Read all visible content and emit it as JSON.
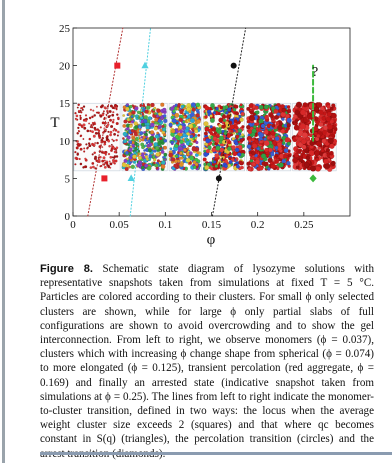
{
  "chart_data": {
    "type": "scatter",
    "xlabel": "φ",
    "ylabel": "T",
    "xlim": [
      0,
      0.3
    ],
    "ylim": [
      0,
      25
    ],
    "xticks": [
      "0",
      "0.05",
      "0.1",
      "0.15",
      "0.2",
      "0.25"
    ],
    "xtick_values": [
      0,
      0.05,
      0.1,
      0.15,
      0.2,
      0.25
    ],
    "yticks": [
      "0",
      "5",
      "10",
      "15",
      "20",
      "25"
    ],
    "ytick_values": [
      0,
      5,
      10,
      15,
      20,
      25
    ],
    "question_mark": "?",
    "snapshot_band_T": [
      6,
      15
    ],
    "snapshots": [
      {
        "phi_range": [
          0.001,
          0.051
        ],
        "style": "monomers"
      },
      {
        "phi_range": [
          0.053,
          0.102
        ],
        "style": "spherical"
      },
      {
        "phi_range": [
          0.104,
          0.139
        ],
        "style": "elongated"
      },
      {
        "phi_range": [
          0.141,
          0.186
        ],
        "style": "percolating"
      },
      {
        "phi_range": [
          0.188,
          0.236
        ],
        "style": "dense"
      },
      {
        "phi_range": [
          0.238,
          0.285
        ],
        "style": "arrested"
      }
    ],
    "series": [
      {
        "marker": "square",
        "color": "#e8202b",
        "points": [
          {
            "x": 0.034,
            "y": 5
          },
          {
            "x": 0.048,
            "y": 20
          }
        ],
        "line_color": "#b03030",
        "line": [
          {
            "x": 0.016,
            "y": 0
          },
          {
            "x": 0.054,
            "y": 25
          }
        ]
      },
      {
        "marker": "triangle",
        "color": "#4fd0e0",
        "points": [
          {
            "x": 0.063,
            "y": 5
          },
          {
            "x": 0.078,
            "y": 20
          }
        ],
        "line_color": "#4fd0e0",
        "line": [
          {
            "x": 0.062,
            "y": 0
          },
          {
            "x": 0.084,
            "y": 25
          }
        ]
      },
      {
        "marker": "circle",
        "color": "#111111",
        "points": [
          {
            "x": 0.158,
            "y": 5
          },
          {
            "x": 0.174,
            "y": 20
          }
        ],
        "line_color": "#222222",
        "line": [
          {
            "x": 0.151,
            "y": 0
          },
          {
            "x": 0.187,
            "y": 25
          }
        ]
      },
      {
        "marker": "diamond",
        "color": "#3cb93c",
        "points": [
          {
            "x": 0.26,
            "y": 5
          }
        ],
        "line_color": "#3cb93c",
        "line": [
          {
            "x": 0.26,
            "y": 10
          },
          {
            "x": 0.26,
            "y": 20
          }
        ]
      }
    ]
  },
  "caption": {
    "label": "Figure 8.",
    "text": "Schematic state diagram of lysozyme solutions with representative snapshots taken from simulations at fixed T = 5 °C. Particles are colored according to their clusters. For small ϕ only selected clusters are shown, while for large ϕ only partial slabs of full configurations are shown to avoid overcrowding and to show the gel interconnection. From left to right, we observe monomers (ϕ = 0.037), clusters which with increasing ϕ change shape from spherical (ϕ = 0.074) to more elongated (ϕ = 0.125), transient percolation (red aggregate, ϕ = 0.169) and finally an arrested state (indicative snapshot taken from simulations at ϕ = 0.25). The lines from left to right indicate the monomer-to-cluster transition, defined in two ways: the locus when the average weight cluster size exceeds 2 (squares) and that where qc becomes constant in S(q) (triangles), the percolation transition (circles) and the arrest transition (diamonds)."
  }
}
